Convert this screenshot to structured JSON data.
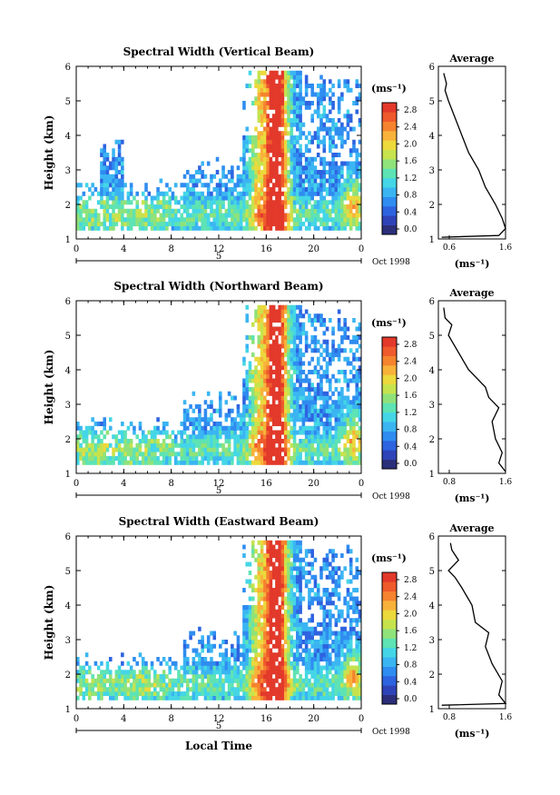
{
  "page": {
    "xlabel": "Local Time"
  },
  "chart_data": [
    {
      "type": "heatmap",
      "title": "Spectral Width (Vertical Beam)",
      "ylabel": "Height (km)",
      "xticks": [
        "0",
        "4",
        "8",
        "12",
        "16",
        "20",
        "0"
      ],
      "yticks": [
        "1",
        "2",
        "3",
        "4",
        "5",
        "6"
      ],
      "xlim": [
        0,
        24
      ],
      "ylim": [
        1,
        6
      ],
      "date_marker": "5",
      "date_label": "Oct 1998",
      "colorbar": {
        "unit": "(ms⁻¹)",
        "ticks": [
          "0.0",
          "0.4",
          "0.8",
          "1.2",
          "1.6",
          "2.0",
          "2.4",
          "2.8"
        ]
      },
      "profile": {
        "title": "Average",
        "xlabel": "(ms⁻¹)",
        "xticks": [
          "0.6",
          "1.6"
        ],
        "xlim": [
          0.6,
          1.6
        ],
        "heights": [
          1.05,
          1.1,
          1.3,
          1.6,
          2.0,
          2.5,
          3.0,
          3.5,
          4.0,
          4.5,
          5.0,
          5.3,
          5.5,
          5.8
        ],
        "values": [
          0.65,
          1.5,
          1.6,
          1.55,
          1.45,
          1.3,
          1.2,
          1.05,
          0.95,
          0.85,
          0.75,
          0.7,
          0.72,
          0.68
        ]
      }
    },
    {
      "type": "heatmap",
      "title": "Spectral Width (Northward Beam)",
      "ylabel": "Height (km)",
      "xticks": [
        "0",
        "4",
        "8",
        "12",
        "16",
        "20",
        "0"
      ],
      "yticks": [
        "1",
        "2",
        "3",
        "4",
        "5",
        "6"
      ],
      "xlim": [
        0,
        24
      ],
      "ylim": [
        1,
        6
      ],
      "date_marker": "5",
      "date_label": "Oct 1998",
      "colorbar": {
        "unit": "(ms⁻¹)",
        "ticks": [
          "0.0",
          "0.4",
          "0.8",
          "1.2",
          "1.6",
          "2.0",
          "2.4",
          "2.8"
        ]
      },
      "profile": {
        "title": "Average",
        "xlabel": "(ms⁻¹)",
        "xticks": [
          "0.8",
          "1.6"
        ],
        "xlim": [
          0.6,
          1.6
        ],
        "heights": [
          1.05,
          1.3,
          1.6,
          2.0,
          2.5,
          2.9,
          3.2,
          3.5,
          4.0,
          4.5,
          5.0,
          5.3,
          5.5,
          5.8
        ],
        "values": [
          1.6,
          1.5,
          1.55,
          1.45,
          1.4,
          1.5,
          1.35,
          1.3,
          1.05,
          0.9,
          0.75,
          0.8,
          0.7,
          0.68
        ]
      }
    },
    {
      "type": "heatmap",
      "title": "Spectral Width (Eastward Beam)",
      "ylabel": "Height (km)",
      "xticks": [
        "0",
        "4",
        "8",
        "12",
        "16",
        "20",
        "0"
      ],
      "yticks": [
        "1",
        "2",
        "3",
        "4",
        "5",
        "6"
      ],
      "xlim": [
        0,
        24
      ],
      "ylim": [
        1,
        6
      ],
      "date_marker": "5",
      "date_label": "Oct 1998",
      "colorbar": {
        "unit": "(ms⁻¹)",
        "ticks": [
          "0.0",
          "0.4",
          "0.8",
          "1.2",
          "1.6",
          "2.0",
          "2.4",
          "2.8"
        ]
      },
      "profile": {
        "title": "Average",
        "xlabel": "(ms⁻¹)",
        "xticks": [
          "0.8",
          "1.6"
        ],
        "xlim": [
          0.6,
          1.6
        ],
        "heights": [
          1.1,
          1.15,
          1.4,
          1.8,
          2.3,
          2.8,
          3.2,
          3.5,
          4.0,
          4.5,
          4.8,
          5.0,
          5.3,
          5.6,
          5.8
        ],
        "values": [
          0.65,
          1.6,
          1.5,
          1.55,
          1.4,
          1.3,
          1.35,
          1.15,
          1.1,
          0.95,
          0.85,
          0.75,
          0.9,
          0.8,
          0.78
        ]
      }
    }
  ],
  "colors": {
    "scale": [
      "#2b2f7a",
      "#2f43b8",
      "#2e63e0",
      "#2f8cf0",
      "#3ab5f2",
      "#44d6e6",
      "#5de3b4",
      "#8fe27a",
      "#c6e34e",
      "#ecd93c",
      "#f8b23a",
      "#f5832f",
      "#ee5a2c",
      "#e2392b"
    ]
  }
}
